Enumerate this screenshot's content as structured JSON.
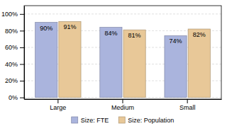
{
  "chart_data": {
    "type": "bar",
    "categories": [
      "Large",
      "Medium",
      "Small"
    ],
    "series": [
      {
        "name": "Size: FTE",
        "color": "#aab4dd",
        "values": [
          0.9,
          0.84,
          0.74
        ],
        "value_labels": [
          "90%",
          "84%",
          "74%"
        ]
      },
      {
        "name": "Size: Population",
        "color": "#e8c898",
        "values": [
          0.91,
          0.81,
          0.82
        ],
        "value_labels": [
          "91%",
          "81%",
          "82%"
        ]
      }
    ],
    "ylim": [
      -0.02,
      1.1
    ],
    "yticks": [
      {
        "value": 0.0,
        "label": "0%"
      },
      {
        "value": 0.2,
        "label": "20%"
      },
      {
        "value": 0.4,
        "label": "40%"
      },
      {
        "value": 0.6,
        "label": "60%"
      },
      {
        "value": 0.8,
        "label": "80%"
      },
      {
        "value": 1.0,
        "label": "100%"
      }
    ],
    "grid": true,
    "legend": "bottom",
    "data_labels": true
  }
}
